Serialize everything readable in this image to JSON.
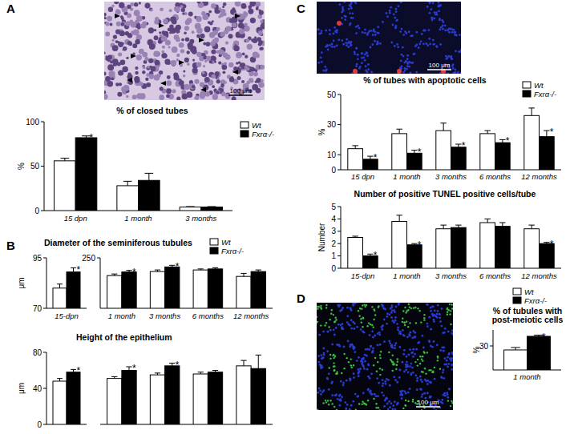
{
  "chart_data": [
    {
      "type": "bar",
      "title": "% of closed tubes",
      "y_label": "%",
      "categories": [
        "15 dpn",
        "1 month",
        "3 months"
      ],
      "series": [
        {
          "name": "Wt",
          "color": "#ffffff",
          "values": [
            56,
            28,
            4
          ],
          "errors": [
            3,
            5,
            0.5
          ]
        },
        {
          "name": "Fxrα-/-",
          "color": "#000000",
          "values": [
            82,
            34,
            4
          ],
          "errors": [
            2,
            8,
            0.5
          ]
        }
      ],
      "ylim": [
        0,
        100
      ],
      "yticks": [
        0,
        50,
        100
      ],
      "legend": "top-right",
      "annotations": [
        {
          "text": "*",
          "category": 0,
          "series": 1
        }
      ]
    },
    {
      "type": "bar",
      "title": "Diameter of the seminiferous tubules",
      "y_label": "μm",
      "categories": [
        "15-dpn"
      ],
      "series": [
        {
          "name": "Wt",
          "color": "#ffffff",
          "values": [
            80
          ],
          "errors": [
            2
          ]
        },
        {
          "name": "Fxrα-/-",
          "color": "#000000",
          "values": [
            88
          ],
          "errors": [
            2
          ]
        }
      ],
      "ylim": [
        70,
        95
      ],
      "yticks": [
        70,
        95
      ],
      "annotations": [
        {
          "text": "*",
          "category": 0,
          "series": 1
        }
      ]
    },
    {
      "type": "bar",
      "categories": [
        "1 month",
        "3 months",
        "6 months",
        "12 months"
      ],
      "series": [
        {
          "name": "Wt",
          "color": "#ffffff",
          "values": [
            162,
            182,
            190,
            158
          ],
          "errors": [
            8,
            8,
            5,
            15
          ]
        },
        {
          "name": "Fxrα-/-",
          "color": "#000000",
          "values": [
            180,
            205,
            195,
            182
          ],
          "errors": [
            8,
            8,
            6,
            8
          ]
        }
      ],
      "ylim": [
        0,
        250
      ],
      "yticks": [
        250
      ],
      "legend": "top-right",
      "annotations": [
        {
          "text": "*",
          "category": 0,
          "series": 1
        },
        {
          "text": "*",
          "category": 1,
          "series": 1
        }
      ]
    },
    {
      "type": "bar",
      "title": "Height of the epithelium",
      "y_label": "μm",
      "categories": [
        null,
        null,
        null,
        null,
        null
      ],
      "series": [
        {
          "name": "Wt",
          "color": "#ffffff",
          "values": [
            48,
            51,
            55,
            56,
            65
          ],
          "errors": [
            3,
            2,
            2,
            2,
            6
          ]
        },
        {
          "name": "Fxrα-/-",
          "color": "#000000",
          "values": [
            58,
            60,
            65,
            58,
            62
          ],
          "errors": [
            3,
            4,
            3,
            2,
            15
          ]
        }
      ],
      "ylim": [
        0,
        80
      ],
      "yticks": [
        0,
        40,
        80
      ],
      "annotations": [
        {
          "text": "*",
          "category": 0,
          "series": 1
        },
        {
          "text": "*",
          "category": 1,
          "series": 1
        },
        {
          "text": "*",
          "category": 2,
          "series": 1
        }
      ]
    },
    {
      "type": "bar",
      "title": "% of tubes with apoptotic cells",
      "y_label": "%",
      "categories": [
        "15 dpn",
        "1 month",
        "3 months",
        "6 months",
        "12 months"
      ],
      "series": [
        {
          "name": "Wt",
          "color": "#ffffff",
          "values": [
            14,
            24,
            26,
            24,
            36
          ],
          "errors": [
            2,
            3,
            5,
            2,
            5
          ]
        },
        {
          "name": "Fxrα-/-",
          "color": "#000000",
          "values": [
            7,
            11,
            15,
            18,
            22
          ],
          "errors": [
            2,
            2,
            2,
            2,
            4
          ]
        }
      ],
      "ylim": [
        0,
        50
      ],
      "yticks": [
        0,
        10,
        30,
        50
      ],
      "legend": "top-right",
      "annotations": [
        {
          "text": "*",
          "category": 0,
          "series": 1
        },
        {
          "text": "*",
          "category": 1,
          "series": 1
        },
        {
          "text": "*",
          "category": 2,
          "series": 1
        },
        {
          "text": "*",
          "category": 3,
          "series": 1
        },
        {
          "text": "*",
          "category": 4,
          "series": 1
        }
      ]
    },
    {
      "type": "bar",
      "title": "Number of positive TUNEL positive cells/tube",
      "y_label": "Number",
      "categories": [
        "15-dpn",
        "1 month",
        "3 months",
        "6 months",
        "12 months"
      ],
      "series": [
        {
          "name": "Wt",
          "color": "#ffffff",
          "values": [
            2.5,
            3.8,
            3.2,
            3.7,
            3.2
          ],
          "errors": [
            0.1,
            0.5,
            0.3,
            0.3,
            0.3
          ]
        },
        {
          "name": "Fxrα-/-",
          "color": "#000000",
          "values": [
            1.0,
            1.9,
            3.3,
            3.4,
            2.0
          ],
          "errors": [
            0.15,
            0.1,
            0.2,
            0.3,
            0.1
          ]
        }
      ],
      "ylim": [
        0,
        5
      ],
      "yticks": [
        0,
        1,
        2,
        3,
        4,
        5
      ],
      "annotations": [
        {
          "text": "*",
          "category": 0,
          "series": 1
        },
        {
          "text": "*",
          "category": 1,
          "series": 1
        },
        {
          "text": "*",
          "category": 4,
          "series": 1
        }
      ]
    },
    {
      "type": "bar",
      "title": "% of tubules with post-meiotic cells",
      "y_label": "%",
      "categories": [
        "1 month"
      ],
      "series": [
        {
          "name": "Wt",
          "color": "#ffffff",
          "values": [
            25
          ],
          "errors": [
            3
          ]
        },
        {
          "name": "Fxrα-/-",
          "color": "#000000",
          "values": [
            42
          ],
          "errors": [
            1.5
          ]
        }
      ],
      "ylim": [
        0,
        50
      ],
      "yticks": [
        30
      ],
      "legend": "top-right",
      "annotations": [
        {
          "text": "*",
          "category": 0,
          "series": 1
        }
      ]
    }
  ],
  "panels": [
    {
      "letter": "A",
      "scale_bar": "100 μm"
    },
    {
      "letter": "B"
    },
    {
      "letter": "C",
      "scale_bar": "100 μm"
    },
    {
      "letter": "D",
      "scale_bar": "100 μm"
    }
  ]
}
